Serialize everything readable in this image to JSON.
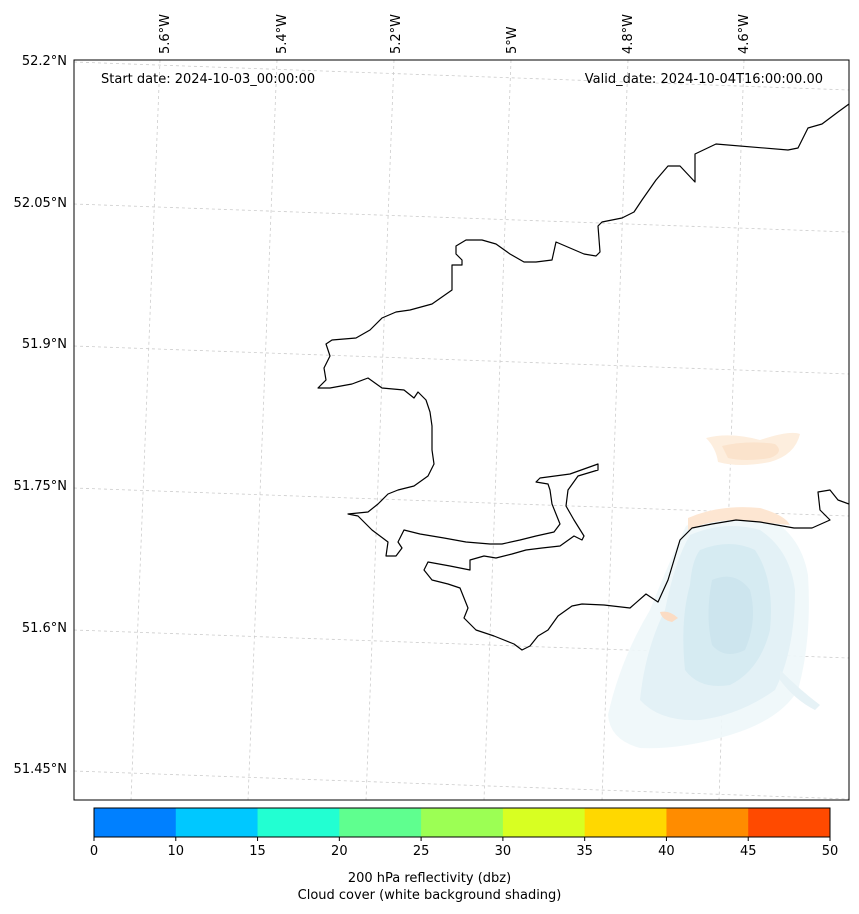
{
  "map": {
    "start_label": "Start date: 2024-10-03_00:00:00",
    "valid_label": "Valid_date: 2024-10-04T16:00:00.00",
    "longitude_labels": [
      "5.6°W",
      "5.4°W",
      "5.2°W",
      "5°W",
      "4.8°W",
      "4.6°W"
    ],
    "latitude_labels": [
      "52.2°N",
      "52.05°N",
      "51.9°N",
      "51.75°N",
      "51.6°N",
      "51.45°N"
    ]
  },
  "colorbar": {
    "ticks": [
      "0",
      "10",
      "15",
      "20",
      "25",
      "30",
      "35",
      "40",
      "45",
      "50"
    ],
    "colors": [
      "#0080ff",
      "#00c8ff",
      "#22ffd2",
      "#5fff8f",
      "#9cff54",
      "#d8ff22",
      "#ffd800",
      "#ff8c00",
      "#ff4a00"
    ],
    "label_line1": "200 hPa reflectivity (dbz)",
    "label_line2": "Cloud cover (white background shading)"
  }
}
